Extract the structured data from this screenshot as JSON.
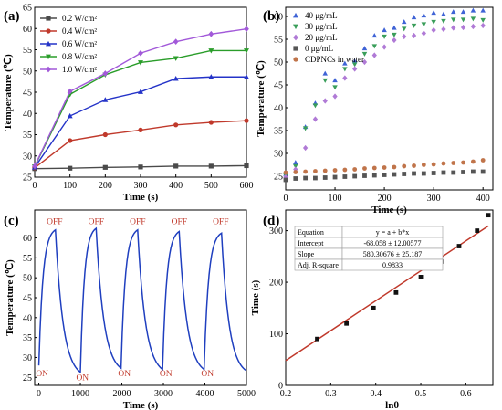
{
  "chart_data": [
    {
      "type": "line",
      "panel_label": "(a)",
      "xlabel": "Time (s)",
      "ylabel": "Temperature (℃)",
      "xlim": [
        0,
        600
      ],
      "ylim": [
        25,
        65
      ],
      "xticks": [
        0,
        100,
        200,
        300,
        400,
        500,
        600
      ],
      "yticks": [
        25,
        30,
        35,
        40,
        45,
        50,
        55,
        60,
        65
      ],
      "legend_position": "top-left",
      "x": [
        0,
        100,
        200,
        300,
        400,
        500,
        600
      ],
      "series": [
        {
          "name": "0.2 W/cm²",
          "color": "#4a4a4a",
          "marker": "square",
          "values": [
            27.0,
            27.1,
            27.3,
            27.4,
            27.6,
            27.6,
            27.7
          ]
        },
        {
          "name": "0.4 W/cm²",
          "color": "#c0392b",
          "marker": "circle",
          "values": [
            27.2,
            33.6,
            35.0,
            36.1,
            37.3,
            37.9,
            38.3
          ]
        },
        {
          "name": "0.6 W/cm²",
          "color": "#2433c8",
          "marker": "triangle-up",
          "values": [
            27.3,
            39.4,
            43.2,
            45.1,
            48.2,
            48.6,
            48.6
          ]
        },
        {
          "name": "0.8 W/cm²",
          "color": "#2a9d2a",
          "marker": "triangle-down",
          "values": [
            27.5,
            44.5,
            49.1,
            52.0,
            53.0,
            54.8,
            54.8
          ]
        },
        {
          "name": "1.0 W/cm²",
          "color": "#a259d9",
          "marker": "diamond",
          "values": [
            27.6,
            45.2,
            49.4,
            54.2,
            56.9,
            58.7,
            59.9
          ]
        }
      ]
    },
    {
      "type": "scatter",
      "panel_label": "(b)",
      "xlabel": "Time (s)",
      "ylabel": "Temperature (℃)",
      "xlim": [
        0,
        420
      ],
      "ylim": [
        22,
        62
      ],
      "xticks": [
        0,
        100,
        200,
        300,
        400
      ],
      "yticks": [
        25,
        30,
        35,
        40,
        45,
        50,
        55,
        60
      ],
      "legend_position": "top-left",
      "x": [
        0,
        20,
        40,
        60,
        80,
        100,
        120,
        140,
        160,
        180,
        200,
        220,
        240,
        260,
        280,
        300,
        320,
        340,
        360,
        380,
        400
      ],
      "series": [
        {
          "name": "40 μg/mL",
          "color": "#3f63d6",
          "marker": "triangle-up",
          "values": [
            25.5,
            28.0,
            35.8,
            41.0,
            47.5,
            46.0,
            49.7,
            50.2,
            53.0,
            55.8,
            57.0,
            57.5,
            58.8,
            59.8,
            60.2,
            60.8,
            60.5,
            61.0,
            61.0,
            61.3,
            61.3
          ]
        },
        {
          "name": "30 μg/mL",
          "color": "#3a9e5a",
          "marker": "triangle-down",
          "values": [
            25.2,
            27.2,
            35.5,
            40.5,
            46.0,
            44.5,
            48.5,
            49.5,
            51.8,
            53.5,
            55.6,
            56.0,
            57.3,
            58.0,
            58.3,
            58.8,
            59.0,
            59.3,
            59.3,
            59.5,
            59.2
          ]
        },
        {
          "name": "20 μg/mL",
          "color": "#b07ad6",
          "marker": "diamond",
          "values": [
            24.8,
            26.5,
            31.2,
            37.5,
            41.5,
            42.5,
            46.5,
            48.5,
            50.0,
            51.5,
            53.3,
            54.8,
            55.6,
            55.8,
            56.3,
            57.0,
            57.2,
            57.5,
            57.6,
            57.8,
            58.0
          ]
        },
        {
          "name": "0 μg/mL",
          "color": "#555555",
          "marker": "square",
          "values": [
            24.2,
            24.5,
            24.6,
            24.6,
            24.7,
            24.8,
            24.9,
            25.0,
            25.1,
            25.2,
            25.3,
            25.4,
            25.5,
            25.6,
            25.6,
            25.7,
            25.8,
            25.8,
            25.9,
            26.0,
            26.0
          ]
        },
        {
          "name": "CDPNCs in water",
          "color": "#c0744a",
          "marker": "circle",
          "values": [
            25.8,
            25.9,
            26.0,
            26.1,
            26.2,
            26.3,
            26.4,
            26.5,
            26.7,
            26.8,
            26.9,
            27.0,
            27.2,
            27.3,
            27.5,
            27.6,
            27.8,
            27.9,
            28.0,
            28.2,
            28.5
          ]
        }
      ]
    },
    {
      "type": "line",
      "panel_label": "(c)",
      "xlabel": "Time (s)",
      "ylabel": "Temperature (℃)",
      "xlim": [
        -100,
        5000
      ],
      "ylim": [
        23,
        67
      ],
      "xticks": [
        0,
        1000,
        2000,
        3000,
        4000,
        5000
      ],
      "yticks": [
        25,
        30,
        35,
        40,
        45,
        50,
        55,
        60
      ],
      "color": "#1f3fbf",
      "cycles": [
        {
          "on_time": 0,
          "peak_time": 400,
          "off_time": 1000,
          "start_temp": 28.0,
          "peak_temp": 62.0,
          "end_temp": 26.3
        },
        {
          "on_time": 1000,
          "peak_time": 1380,
          "off_time": 1980,
          "start_temp": 26.3,
          "peak_temp": 62.4,
          "end_temp": 27.3
        },
        {
          "on_time": 1980,
          "peak_time": 2380,
          "off_time": 2980,
          "start_temp": 27.3,
          "peak_temp": 62.0,
          "end_temp": 27.0
        },
        {
          "on_time": 2980,
          "peak_time": 3380,
          "off_time": 3980,
          "start_temp": 27.0,
          "peak_temp": 61.6,
          "end_temp": 27.0
        },
        {
          "on_time": 3980,
          "peak_time": 4400,
          "off_time": 4980,
          "start_temp": 27.0,
          "peak_temp": 61.2,
          "end_temp": 26.8
        }
      ],
      "annotations": {
        "on": {
          "text": "ON",
          "times": [
            80,
            1050,
            2060,
            3060,
            4060
          ],
          "temps": [
            25.3,
            24.3,
            25.3,
            25.3,
            25.3
          ]
        },
        "off": {
          "text": "OFF",
          "times": [
            380,
            1380,
            2380,
            3380,
            4380
          ],
          "temps": [
            63.4,
            63.4,
            63.4,
            63.4,
            63.4
          ]
        }
      }
    },
    {
      "type": "scatter",
      "panel_label": "(d)",
      "xlabel": "−lnθ",
      "ylabel": "Time (s)",
      "xlim": [
        0.2,
        0.66
      ],
      "ylim": [
        0,
        340
      ],
      "xticks": [
        0.2,
        0.3,
        0.4,
        0.5,
        0.6
      ],
      "yticks": [
        0,
        100,
        200,
        300
      ],
      "point_color": "#111111",
      "fit_color": "#c0392b",
      "x": [
        0.27,
        0.335,
        0.395,
        0.445,
        0.5,
        0.545,
        0.585,
        0.625,
        0.65
      ],
      "y": [
        90,
        120,
        150,
        180,
        210,
        240,
        270,
        300,
        330
      ],
      "fit": {
        "intercept": -68.058,
        "slope": 580.30676,
        "x_range": [
          0.2,
          0.65
        ]
      },
      "table": [
        [
          "Equation",
          "y = a + b*x"
        ],
        [
          "Intercept",
          "-68.058 ± 12.00577"
        ],
        [
          "Slope",
          "580.30676 ± 25.187"
        ],
        [
          "Adj. R-square",
          "0.9833"
        ]
      ]
    }
  ]
}
